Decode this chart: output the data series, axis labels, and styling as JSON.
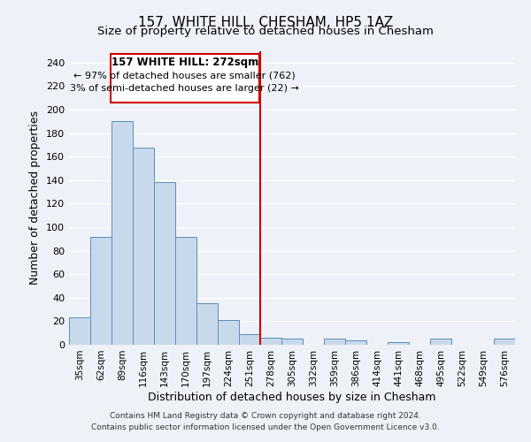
{
  "title": "157, WHITE HILL, CHESHAM, HP5 1AZ",
  "subtitle": "Size of property relative to detached houses in Chesham",
  "xlabel": "Distribution of detached houses by size in Chesham",
  "ylabel": "Number of detached properties",
  "bar_labels": [
    "35sqm",
    "62sqm",
    "89sqm",
    "116sqm",
    "143sqm",
    "170sqm",
    "197sqm",
    "224sqm",
    "251sqm",
    "278sqm",
    "305sqm",
    "332sqm",
    "359sqm",
    "386sqm",
    "414sqm",
    "441sqm",
    "468sqm",
    "495sqm",
    "522sqm",
    "549sqm",
    "576sqm"
  ],
  "bar_heights": [
    23,
    92,
    190,
    168,
    138,
    92,
    35,
    21,
    9,
    6,
    5,
    0,
    5,
    4,
    0,
    2,
    0,
    5,
    0,
    0,
    5
  ],
  "bar_color": "#c9d9ec",
  "bar_edge_color": "#5b8db8",
  "ylim": [
    0,
    250
  ],
  "yticks": [
    0,
    20,
    40,
    60,
    80,
    100,
    120,
    140,
    160,
    180,
    200,
    220,
    240
  ],
  "vline_x_index": 9,
  "vline_color": "#cc0000",
  "annotation_box_text_line1": "157 WHITE HILL: 272sqm",
  "annotation_box_text_line2": "← 97% of detached houses are smaller (762)",
  "annotation_box_text_line3": "3% of semi-detached houses are larger (22) →",
  "annotation_box_color": "#cc0000",
  "footer_line1": "Contains HM Land Registry data © Crown copyright and database right 2024.",
  "footer_line2": "Contains public sector information licensed under the Open Government Licence v3.0.",
  "background_color": "#eef2f8",
  "plot_bg_color": "#eef2f8"
}
